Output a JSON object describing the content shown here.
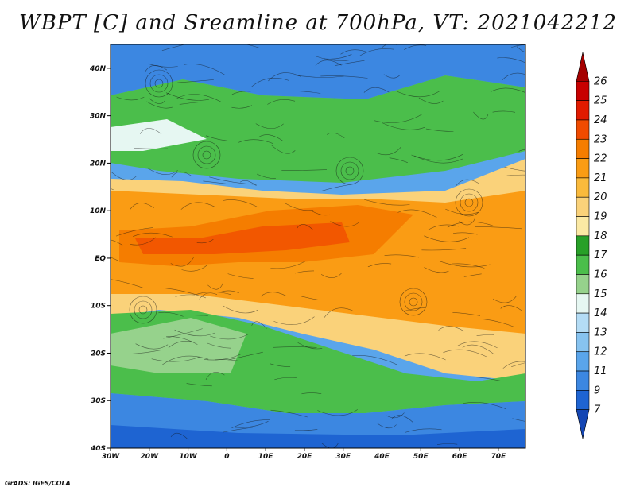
{
  "title": "WBPT [C] and Sreamline at 700hPa, VT: 2021042212",
  "footer": "GrADS: IGES/COLA",
  "lat_labels": [
    "40N",
    "30N",
    "20N",
    "10N",
    "EQ",
    "10S",
    "20S",
    "30S",
    "40S"
  ],
  "lon_labels": [
    "30W",
    "20W",
    "10W",
    "0",
    "10E",
    "20E",
    "30E",
    "40E",
    "50E",
    "60E",
    "70E"
  ],
  "colorbar": {
    "labels": [
      "26",
      "25",
      "24",
      "23",
      "22",
      "21",
      "20",
      "19",
      "18",
      "17",
      "16",
      "15",
      "14",
      "13",
      "12",
      "11",
      "9",
      "7"
    ],
    "colors": [
      "#a50000",
      "#c80000",
      "#e11b00",
      "#f04b00",
      "#f57d00",
      "#fa9c14",
      "#faba3c",
      "#fad27a",
      "#fbe9a4",
      "#28a028",
      "#4bbe4b",
      "#96d28c",
      "#e6f7f2",
      "#b4dcf5",
      "#87c3f0",
      "#5aa5eb",
      "#3c87e1",
      "#1e64d2",
      "#1446b4"
    ]
  }
}
